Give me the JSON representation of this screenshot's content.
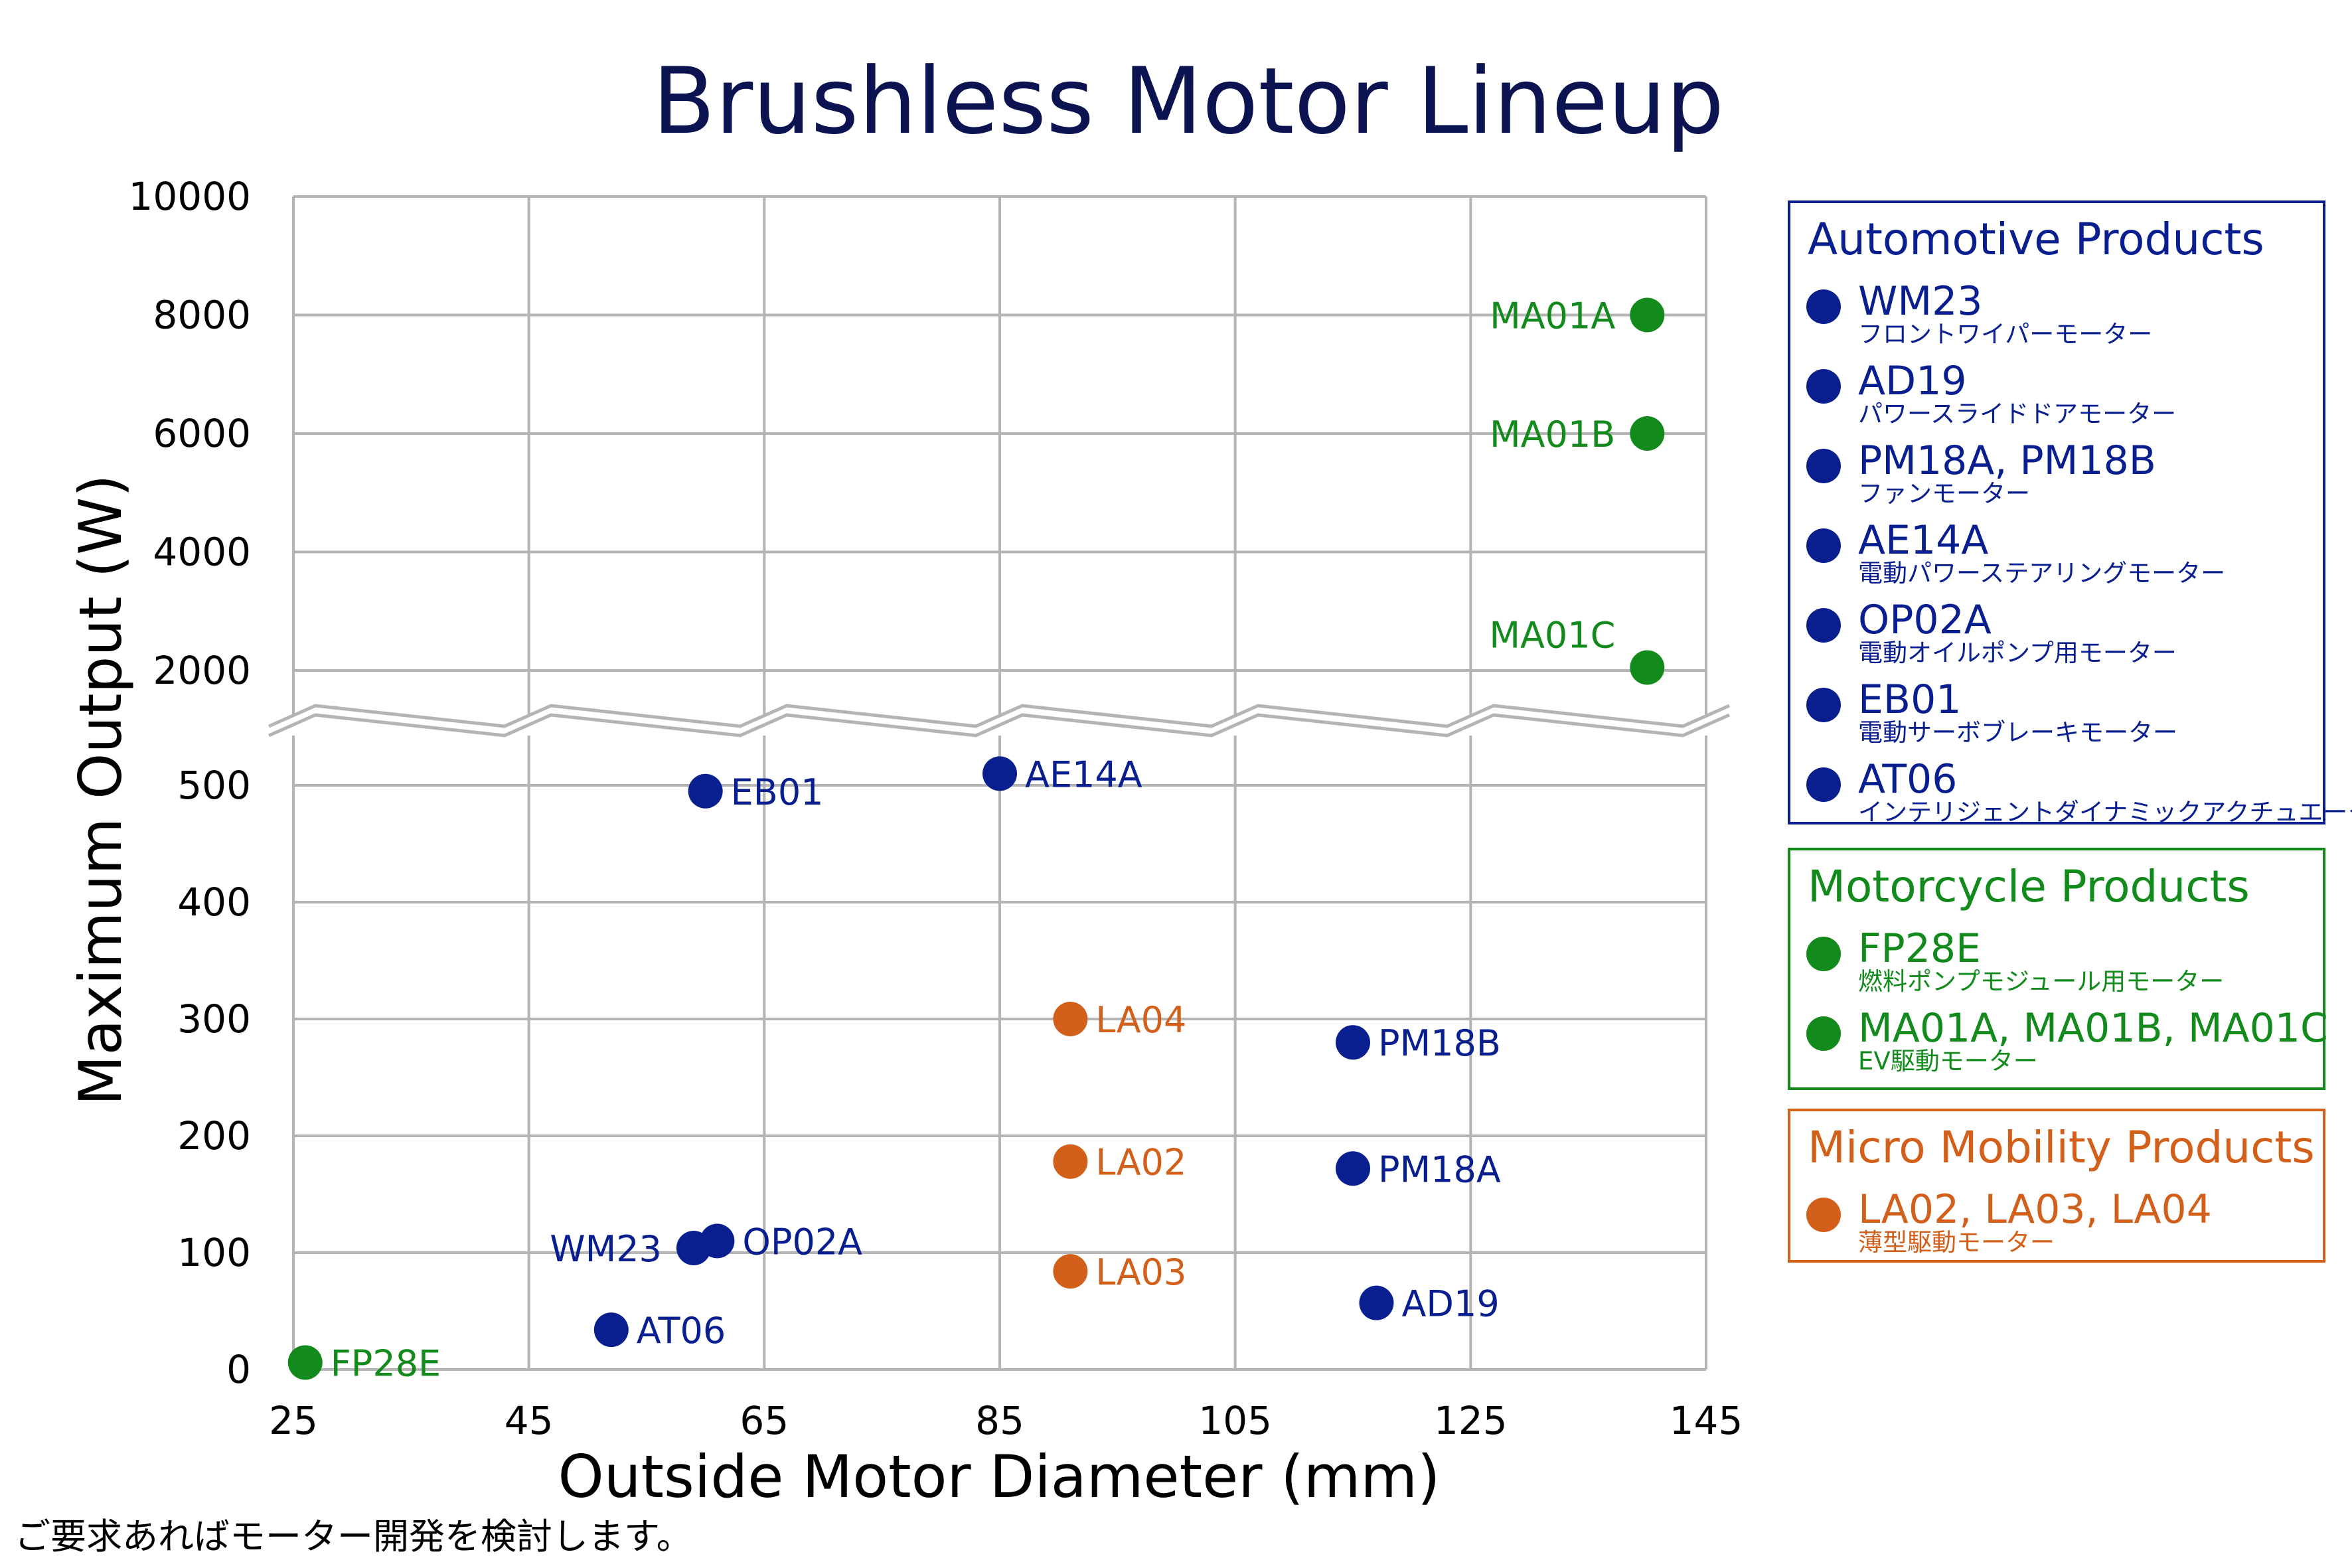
{
  "colors": {
    "automotive": "#0a1f8f",
    "motorcycle": "#128a1c",
    "micro": "#d2601a",
    "title": "#0b1450",
    "grid": "#b4b4b4"
  },
  "chart_data": {
    "type": "scatter",
    "title": "Brushless Motor Lineup",
    "xlabel": "Outside Motor Diameter (mm)",
    "ylabel": "Maximum Output (W)",
    "xlim": [
      25,
      145
    ],
    "xticks": [
      "25",
      "45",
      "65",
      "85",
      "105",
      "125",
      "145"
    ],
    "y_axis_break": true,
    "ylim_lower": [
      0,
      500
    ],
    "ylim_upper": [
      2000,
      10000
    ],
    "yticks_lower": [
      "0",
      "100",
      "200",
      "300",
      "400",
      "500"
    ],
    "yticks_upper": [
      "2000",
      "4000",
      "6000",
      "8000",
      "10000"
    ],
    "grid": true,
    "legend_position": "right",
    "points": [
      {
        "label": "MA01A",
        "x": 140,
        "y": 8000,
        "group": "motorcycle",
        "label_pos": "left"
      },
      {
        "label": "MA01B",
        "x": 140,
        "y": 6000,
        "group": "motorcycle",
        "label_pos": "left"
      },
      {
        "label": "MA01C",
        "x": 140,
        "y": 2050,
        "group": "motorcycle",
        "label_pos": "upper-left"
      },
      {
        "label": "EB01",
        "x": 60,
        "y": 495,
        "group": "automotive",
        "label_pos": "right"
      },
      {
        "label": "AE14A",
        "x": 85,
        "y": 510,
        "group": "automotive",
        "label_pos": "right"
      },
      {
        "label": "LA04",
        "x": 91,
        "y": 300,
        "group": "micro",
        "label_pos": "right"
      },
      {
        "label": "PM18B",
        "x": 115,
        "y": 280,
        "group": "automotive",
        "label_pos": "right"
      },
      {
        "label": "LA02",
        "x": 91,
        "y": 178,
        "group": "micro",
        "label_pos": "right"
      },
      {
        "label": "PM18A",
        "x": 115,
        "y": 172,
        "group": "automotive",
        "label_pos": "right"
      },
      {
        "label": "OP02A",
        "x": 61,
        "y": 110,
        "group": "automotive",
        "label_pos": "right"
      },
      {
        "label": "WM23",
        "x": 59,
        "y": 104,
        "group": "automotive",
        "label_pos": "left"
      },
      {
        "label": "LA03",
        "x": 91,
        "y": 84,
        "group": "micro",
        "label_pos": "right"
      },
      {
        "label": "AD19",
        "x": 117,
        "y": 57,
        "group": "automotive",
        "label_pos": "right"
      },
      {
        "label": "AT06",
        "x": 52,
        "y": 34,
        "group": "automotive",
        "label_pos": "right"
      },
      {
        "label": "FP28E",
        "x": 26,
        "y": 6,
        "group": "motorcycle",
        "label_pos": "right"
      }
    ]
  },
  "legend": {
    "automotive": {
      "title": "Automotive Products",
      "items": [
        {
          "name": "WM23",
          "desc": "フロントワイパーモーター"
        },
        {
          "name": "AD19",
          "desc": "パワースライドドアモーター"
        },
        {
          "name": "PM18A, PM18B",
          "desc": "ファンモーター"
        },
        {
          "name": "AE14A",
          "desc": "電動パワーステアリングモーター"
        },
        {
          "name": "OP02A",
          "desc": "電動オイルポンプ用モーター"
        },
        {
          "name": "EB01",
          "desc": "電動サーボブレーキモーター"
        },
        {
          "name": "AT06",
          "desc": "インテリジェントダイナミックアクチュエーター"
        }
      ]
    },
    "motorcycle": {
      "title": "Motorcycle Products",
      "items": [
        {
          "name": "FP28E",
          "desc": "燃料ポンプモジュール用モーター"
        },
        {
          "name": "MA01A, MA01B, MA01C",
          "desc": "EV駆動モーター"
        }
      ]
    },
    "micro": {
      "title": "Micro Mobility Products",
      "items": [
        {
          "name": "LA02, LA03, LA04",
          "desc": "薄型駆動モーター"
        }
      ]
    }
  },
  "footnote": "ご要求あればモーター開発を検討します。"
}
